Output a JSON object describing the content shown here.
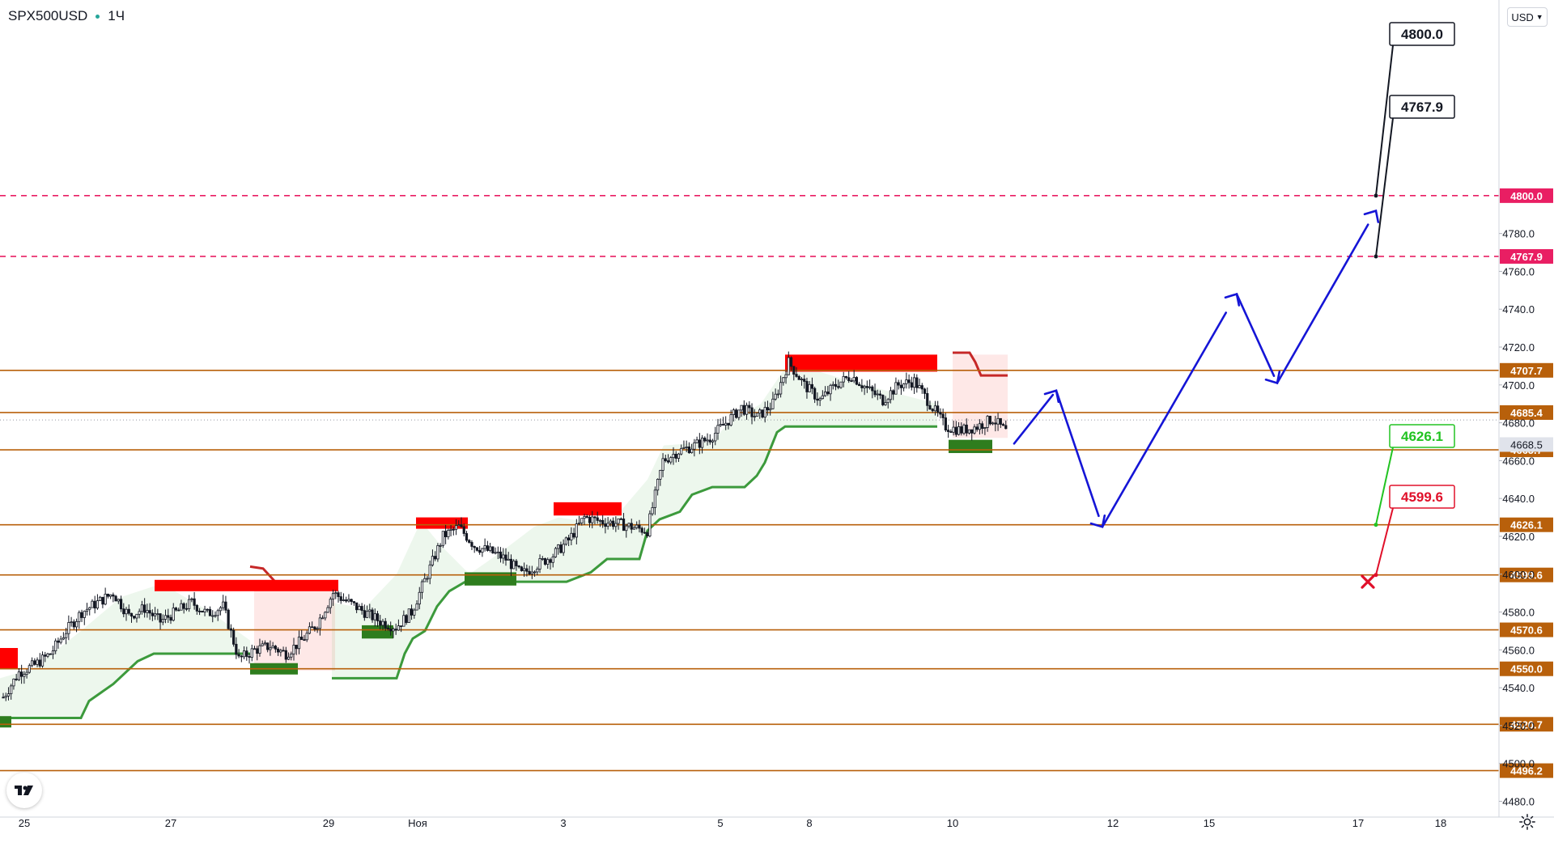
{
  "header": {
    "symbol": "SPX500USD",
    "separator": "·",
    "interval": "1Ч"
  },
  "currency_button": {
    "label": "USD",
    "icon": "chevron-down-icon"
  },
  "logo": {
    "text": "TV",
    "icon": "tradingview-logo-icon"
  },
  "settings": {
    "icon": "gear-icon"
  },
  "chart_data": {
    "type": "candlestick",
    "symbol": "SPX500USD",
    "interval": "1Ч",
    "ylim": [
      4476,
      4816
    ],
    "x_ticks": [
      "25",
      "27",
      "29",
      "Ноя",
      "3",
      "5",
      "8",
      "10",
      "12",
      "15",
      "17",
      "18"
    ],
    "y_ticks": [
      4480.0,
      4500.0,
      4520.0,
      4540.0,
      4560.0,
      4580.0,
      4600.0,
      4620.0,
      4640.0,
      4660.0,
      4680.0,
      4700.0,
      4720.0,
      4740.0,
      4760.0,
      4780.0
    ],
    "last_price": 4668.5,
    "last_price_label": "4668.5",
    "levels": [
      {
        "value": 4800.0,
        "label": "4800.0",
        "style": "dashed",
        "color": "#e91e63"
      },
      {
        "value": 4767.9,
        "label": "4767.9",
        "style": "dashed",
        "color": "#e91e63"
      },
      {
        "value": 4707.7,
        "label": "4707.7",
        "style": "solid",
        "color": "#b8600b"
      },
      {
        "value": 4685.4,
        "label": "4685.4",
        "style": "solid",
        "color": "#b8600b"
      },
      {
        "value": 4665.7,
        "label": "4665.7",
        "style": "solid",
        "color": "#b8600b"
      },
      {
        "value": 4626.1,
        "label": "4626.1",
        "style": "solid",
        "color": "#b8600b"
      },
      {
        "value": 4599.6,
        "label": "4599.6",
        "style": "solid",
        "color": "#b8600b"
      },
      {
        "value": 4570.6,
        "label": "4570.6",
        "style": "solid",
        "color": "#b8600b"
      },
      {
        "value": 4550.0,
        "label": "4550.0",
        "style": "solid",
        "color": "#b8600b"
      },
      {
        "value": 4520.7,
        "label": "4520.7",
        "style": "solid",
        "color": "#b8600b"
      },
      {
        "value": 4496.2,
        "label": "4496.2",
        "style": "solid",
        "color": "#b8600b"
      }
    ],
    "callouts": [
      {
        "label": "4800.0",
        "value": 4800.0,
        "color": "#131722"
      },
      {
        "label": "4767.9",
        "value": 4767.9,
        "color": "#131722"
      },
      {
        "label": "4626.1",
        "value": 4626.1,
        "color": "#22c322"
      },
      {
        "label": "4599.6",
        "value": 4599.6,
        "color": "#e0102a"
      }
    ],
    "close_path": [
      4535,
      4548,
      4552,
      4558,
      4570,
      4580,
      4585,
      4590,
      4578,
      4582,
      4575,
      4580,
      4585,
      4579,
      4583,
      4555,
      4560,
      4562,
      4558,
      4565,
      4574,
      4590,
      4585,
      4580,
      4575,
      4572,
      4580,
      4600,
      4620,
      4625,
      4615,
      4612,
      4608,
      4600,
      4605,
      4610,
      4618,
      4630,
      4628,
      4627,
      4625,
      4623,
      4660,
      4665,
      4668,
      4672,
      4680,
      4688,
      4683,
      4690,
      4712,
      4700,
      4692,
      4700,
      4705,
      4698,
      4692,
      4700,
      4702,
      4690,
      4678,
      4676,
      4678,
      4682,
      4674
    ],
    "projection": [
      4669,
      4697,
      4625,
      4748,
      4701,
      4792
    ],
    "projection_color": "#1515d6"
  }
}
